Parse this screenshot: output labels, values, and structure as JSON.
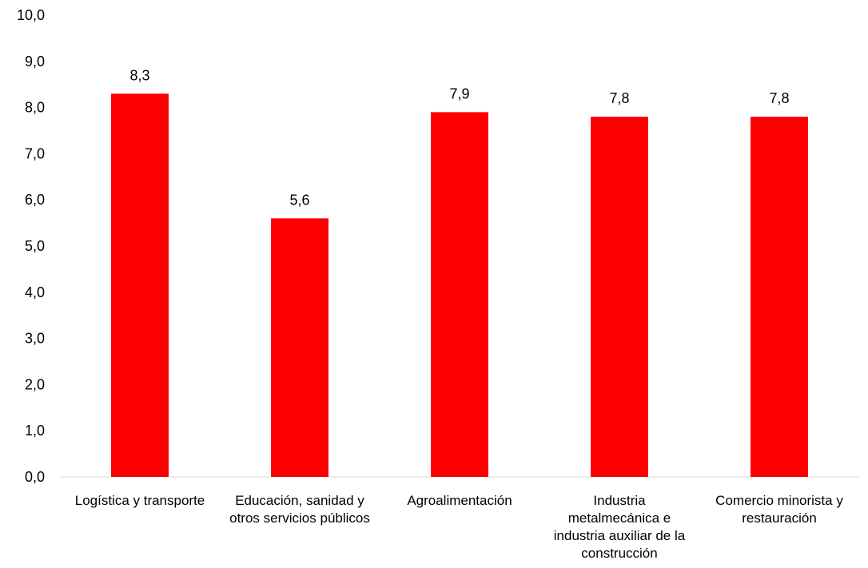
{
  "chart_data": {
    "type": "bar",
    "title": "",
    "xlabel": "",
    "ylabel": "",
    "categories": [
      [
        "Logística y transporte"
      ],
      [
        "Educación, sanidad y",
        "otros servicios públicos"
      ],
      [
        "Agroalimentación"
      ],
      [
        "Industria",
        "metalmecánica e",
        "industria auxiliar de la",
        "construcción"
      ],
      [
        "Comercio minorista y",
        "restauración"
      ]
    ],
    "values": [
      8.3,
      5.6,
      7.9,
      7.8,
      7.8
    ],
    "value_labels": [
      "8,3",
      "5,6",
      "7,9",
      "7,8",
      "7,8"
    ],
    "ylim": [
      0,
      10
    ],
    "yticks": [
      0,
      1,
      2,
      3,
      4,
      5,
      6,
      7,
      8,
      9,
      10
    ],
    "ytick_labels": [
      "0,0",
      "1,0",
      "2,0",
      "3,0",
      "4,0",
      "5,0",
      "6,0",
      "7,0",
      "8,0",
      "9,0",
      "10,0"
    ],
    "grid": false,
    "legend": "none",
    "bar_color": "#ff0000"
  }
}
